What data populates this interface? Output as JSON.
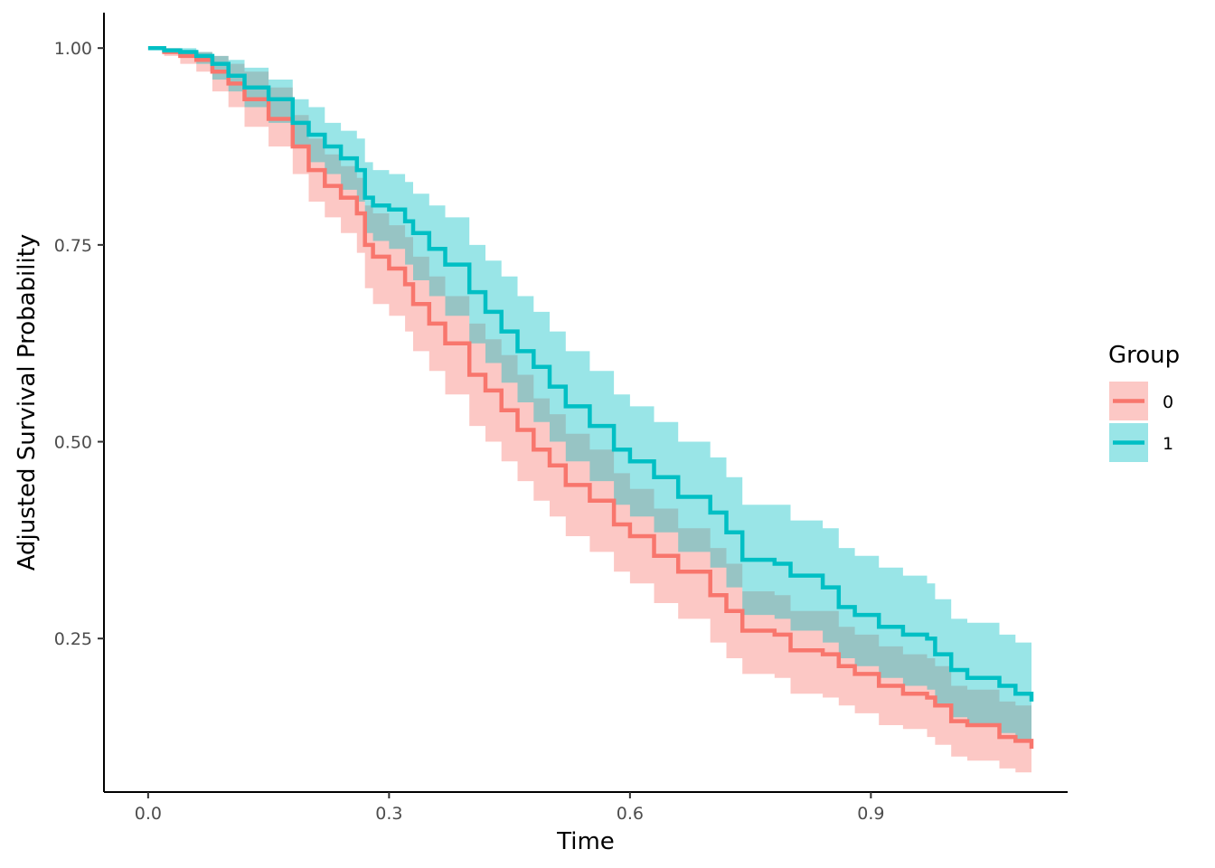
{
  "chart_data": {
    "type": "line",
    "xlabel": "Time",
    "ylabel": "Adjusted Survival Probability",
    "xlim": [
      -0.055,
      1.145
    ],
    "ylim": [
      0.055,
      1.045
    ],
    "x_ticks": [
      0.0,
      0.3,
      0.6,
      0.9
    ],
    "x_tick_labels": [
      "0.0",
      "0.3",
      "0.6",
      "0.9"
    ],
    "y_ticks": [
      0.25,
      0.5,
      0.75,
      1.0
    ],
    "y_tick_labels": [
      "0.25",
      "0.50",
      "0.75",
      "1.00"
    ],
    "grid": false,
    "legend": {
      "title": "Group",
      "position": "right"
    },
    "series": [
      {
        "name": "0",
        "color": "#F8766D",
        "x": [
          0.0,
          0.02,
          0.04,
          0.06,
          0.08,
          0.1,
          0.12,
          0.15,
          0.18,
          0.2,
          0.22,
          0.24,
          0.26,
          0.27,
          0.28,
          0.3,
          0.32,
          0.33,
          0.35,
          0.37,
          0.4,
          0.42,
          0.44,
          0.46,
          0.48,
          0.5,
          0.52,
          0.55,
          0.58,
          0.6,
          0.63,
          0.66,
          0.7,
          0.72,
          0.74,
          0.78,
          0.8,
          0.84,
          0.86,
          0.88,
          0.91,
          0.94,
          0.97,
          0.98,
          1.0,
          1.02,
          1.06,
          1.08,
          1.1
        ],
        "y": [
          1.0,
          0.995,
          0.99,
          0.985,
          0.97,
          0.955,
          0.935,
          0.91,
          0.875,
          0.845,
          0.825,
          0.81,
          0.79,
          0.75,
          0.735,
          0.72,
          0.7,
          0.675,
          0.65,
          0.625,
          0.585,
          0.565,
          0.54,
          0.515,
          0.49,
          0.47,
          0.445,
          0.425,
          0.395,
          0.38,
          0.355,
          0.335,
          0.305,
          0.285,
          0.26,
          0.255,
          0.235,
          0.23,
          0.215,
          0.205,
          0.19,
          0.18,
          0.175,
          0.165,
          0.145,
          0.14,
          0.125,
          0.12,
          0.11
        ],
        "lower": [
          1.0,
          0.99,
          0.98,
          0.97,
          0.945,
          0.925,
          0.9,
          0.875,
          0.84,
          0.805,
          0.785,
          0.765,
          0.74,
          0.695,
          0.675,
          0.66,
          0.64,
          0.615,
          0.59,
          0.56,
          0.52,
          0.5,
          0.475,
          0.45,
          0.425,
          0.405,
          0.38,
          0.36,
          0.335,
          0.32,
          0.295,
          0.275,
          0.245,
          0.225,
          0.205,
          0.2,
          0.18,
          0.175,
          0.165,
          0.155,
          0.14,
          0.135,
          0.125,
          0.115,
          0.1,
          0.095,
          0.085,
          0.08,
          0.075
        ],
        "upper": [
          1.0,
          1.0,
          0.995,
          0.995,
          0.99,
          0.98,
          0.97,
          0.95,
          0.915,
          0.885,
          0.865,
          0.85,
          0.835,
          0.8,
          0.79,
          0.775,
          0.76,
          0.735,
          0.71,
          0.685,
          0.65,
          0.63,
          0.61,
          0.585,
          0.555,
          0.535,
          0.51,
          0.49,
          0.46,
          0.44,
          0.415,
          0.39,
          0.365,
          0.345,
          0.31,
          0.305,
          0.285,
          0.285,
          0.265,
          0.255,
          0.24,
          0.23,
          0.225,
          0.215,
          0.19,
          0.185,
          0.17,
          0.165,
          0.155
        ]
      },
      {
        "name": "1",
        "color": "#00BFC4",
        "x": [
          0.0,
          0.02,
          0.04,
          0.06,
          0.08,
          0.1,
          0.12,
          0.15,
          0.18,
          0.2,
          0.22,
          0.24,
          0.26,
          0.27,
          0.28,
          0.3,
          0.32,
          0.33,
          0.35,
          0.37,
          0.4,
          0.42,
          0.44,
          0.46,
          0.48,
          0.5,
          0.52,
          0.55,
          0.58,
          0.6,
          0.63,
          0.66,
          0.7,
          0.72,
          0.74,
          0.78,
          0.8,
          0.84,
          0.86,
          0.88,
          0.91,
          0.94,
          0.97,
          0.98,
          1.0,
          1.02,
          1.06,
          1.08,
          1.1
        ],
        "y": [
          1.0,
          0.997,
          0.995,
          0.99,
          0.98,
          0.965,
          0.95,
          0.935,
          0.905,
          0.89,
          0.875,
          0.86,
          0.845,
          0.81,
          0.8,
          0.795,
          0.78,
          0.765,
          0.745,
          0.725,
          0.69,
          0.665,
          0.64,
          0.615,
          0.595,
          0.57,
          0.545,
          0.52,
          0.49,
          0.475,
          0.455,
          0.43,
          0.41,
          0.385,
          0.35,
          0.345,
          0.33,
          0.315,
          0.29,
          0.28,
          0.265,
          0.255,
          0.25,
          0.23,
          0.21,
          0.2,
          0.19,
          0.18,
          0.17
        ],
        "lower": [
          1.0,
          0.995,
          0.99,
          0.98,
          0.96,
          0.945,
          0.925,
          0.905,
          0.875,
          0.855,
          0.84,
          0.82,
          0.805,
          0.765,
          0.755,
          0.745,
          0.725,
          0.705,
          0.685,
          0.66,
          0.625,
          0.6,
          0.575,
          0.55,
          0.525,
          0.5,
          0.475,
          0.45,
          0.42,
          0.405,
          0.385,
          0.36,
          0.34,
          0.315,
          0.28,
          0.275,
          0.26,
          0.245,
          0.225,
          0.215,
          0.2,
          0.19,
          0.185,
          0.165,
          0.15,
          0.14,
          0.13,
          0.12,
          0.115
        ],
        "upper": [
          1.0,
          1.0,
          1.0,
          0.995,
          0.99,
          0.985,
          0.975,
          0.96,
          0.935,
          0.925,
          0.905,
          0.895,
          0.885,
          0.855,
          0.845,
          0.84,
          0.83,
          0.815,
          0.8,
          0.785,
          0.75,
          0.73,
          0.71,
          0.685,
          0.665,
          0.64,
          0.615,
          0.59,
          0.56,
          0.545,
          0.525,
          0.5,
          0.48,
          0.455,
          0.42,
          0.42,
          0.4,
          0.39,
          0.365,
          0.355,
          0.34,
          0.33,
          0.32,
          0.3,
          0.275,
          0.27,
          0.255,
          0.245,
          0.235
        ]
      }
    ]
  }
}
